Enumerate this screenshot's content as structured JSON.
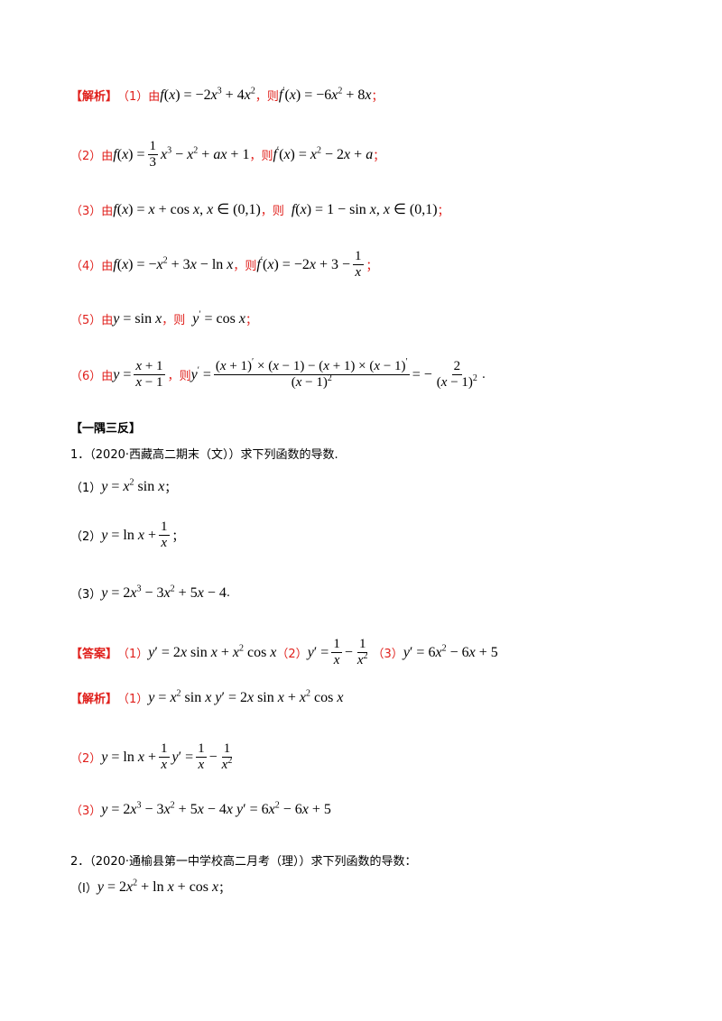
{
  "tags": {
    "jiexi": "【解析】",
    "daan": "【答案】",
    "yiyu": "【一隅三反】"
  },
  "jiexi_lines": [
    {
      "label": "（1）由",
      "sep": "，则",
      "end": "；"
    },
    {
      "label": "（2）由",
      "sep": "，则",
      "end": "；"
    },
    {
      "label": "（3）由",
      "sep": "，则",
      "end": "；"
    },
    {
      "label": "（4）由",
      "sep": "，则",
      "end": "；"
    },
    {
      "label": "（5）由",
      "sep": "，则",
      "end": "；"
    },
    {
      "label": "（6）由",
      "sep": "，则",
      "end": "."
    }
  ],
  "problem1": {
    "heading": "1．（2020·西藏高二期末（文））求下列函数的导数.",
    "items": [
      "（1）",
      "（2）",
      "（3）"
    ],
    "item_ends": [
      "；",
      "；",
      "."
    ]
  },
  "answer1": {
    "labels": [
      "（1）",
      "（2）",
      "（3）"
    ]
  },
  "solution1": {
    "labels": [
      "（1）",
      "（2）",
      "（3）"
    ]
  },
  "problem2": {
    "heading": "2．（2020·通榆县第一中学校高二月考（理））求下列函数的导数：",
    "item_label": "（Ⅰ）",
    "item_end": "；"
  }
}
